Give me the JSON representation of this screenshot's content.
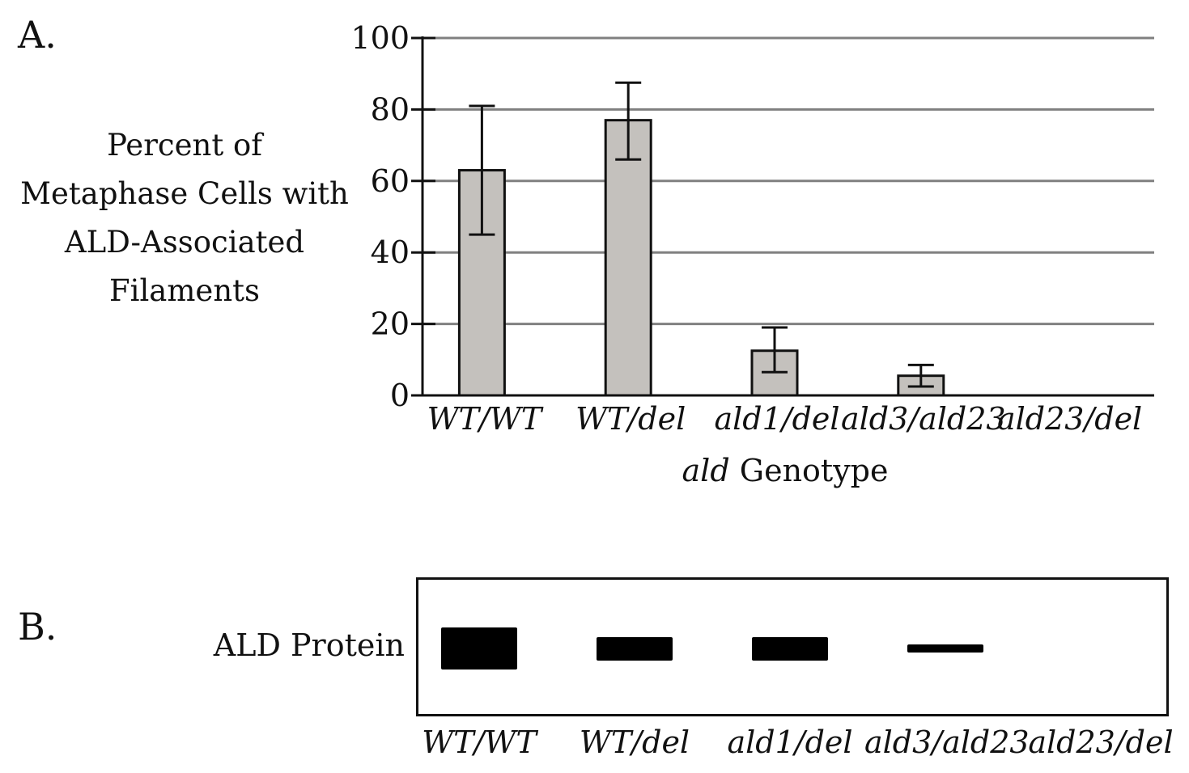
{
  "panel_a": {
    "letter": "A."
  },
  "panel_b": {
    "letter": "B.",
    "row_label": "ALD Protein"
  },
  "chart_data": {
    "type": "bar",
    "categories": [
      "WT/WT",
      "WT/del",
      "ald1/del",
      "ald3/ald23",
      "ald23/del"
    ],
    "values": [
      63,
      77,
      12.5,
      5.5,
      0
    ],
    "error_upper": [
      81,
      87.5,
      19,
      8.5,
      0
    ],
    "error_lower": [
      45,
      66,
      6.5,
      2.5,
      0
    ],
    "ylabel_lines": [
      "Percent of",
      "Metaphase Cells with",
      "ALD-Associated",
      "Filaments"
    ],
    "xlabel_italic": "ald",
    "xlabel_rest": " Genotype",
    "ylim": [
      0,
      100
    ],
    "yticks": [
      "0",
      "20",
      "40",
      "60",
      "80",
      "100"
    ],
    "grid": true,
    "bar_color": "#c4c1bd"
  },
  "blot": {
    "lanes": [
      "WT/WT",
      "WT/del",
      "ald1/del",
      "ald3/ald23",
      "ald23/del"
    ],
    "band_intensity": [
      1.0,
      0.55,
      0.55,
      0.2,
      0
    ]
  }
}
